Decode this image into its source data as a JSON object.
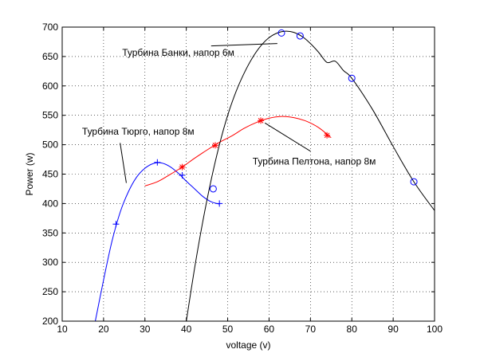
{
  "chart_data": {
    "type": "line",
    "xlabel": "voltage (v)",
    "ylabel": "Power (w)",
    "xlim": [
      10,
      100
    ],
    "ylim": [
      200,
      700
    ],
    "xticks": [
      10,
      20,
      30,
      40,
      50,
      60,
      70,
      80,
      90,
      100
    ],
    "yticks": [
      200,
      250,
      300,
      350,
      400,
      450,
      500,
      550,
      600,
      650,
      700
    ],
    "grid": true,
    "series": [
      {
        "color": "#0000ff",
        "marker": "plus",
        "points": [
          [
            23,
            365
          ],
          [
            33,
            470
          ],
          [
            39,
            448
          ],
          [
            48,
            400
          ]
        ],
        "curve": [
          [
            18,
            200
          ],
          [
            20,
            270
          ],
          [
            22,
            335
          ],
          [
            24,
            385
          ],
          [
            26,
            420
          ],
          [
            28,
            445
          ],
          [
            30,
            460
          ],
          [
            32,
            468
          ],
          [
            34,
            469
          ],
          [
            36,
            463
          ],
          [
            38,
            452
          ],
          [
            40,
            438
          ],
          [
            42,
            425
          ],
          [
            44,
            412
          ],
          [
            46,
            403
          ],
          [
            48,
            399
          ]
        ]
      },
      {
        "color": "#ff0000",
        "marker": "star",
        "points": [
          [
            39,
            462
          ],
          [
            47,
            499
          ],
          [
            58,
            541
          ],
          [
            74,
            516
          ]
        ],
        "curve": [
          [
            30,
            430
          ],
          [
            33,
            437
          ],
          [
            36,
            449
          ],
          [
            39,
            462
          ],
          [
            42,
            477
          ],
          [
            45,
            491
          ],
          [
            48,
            504
          ],
          [
            51,
            515
          ],
          [
            54,
            528
          ],
          [
            57,
            538
          ],
          [
            60,
            545
          ],
          [
            63,
            548
          ],
          [
            66,
            546
          ],
          [
            69,
            540
          ],
          [
            72,
            529
          ],
          [
            75,
            512
          ]
        ]
      },
      {
        "color": "#0000ff",
        "marker": "circle",
        "points": [
          [
            46.5,
            425
          ],
          [
            63,
            690
          ],
          [
            67.5,
            685
          ],
          [
            80,
            613
          ],
          [
            95,
            437
          ]
        ],
        "curve": [
          [
            40,
            200
          ],
          [
            42,
            290
          ],
          [
            44,
            370
          ],
          [
            46,
            440
          ],
          [
            48,
            500
          ],
          [
            50,
            550
          ],
          [
            52,
            590
          ],
          [
            54,
            622
          ],
          [
            56,
            648
          ],
          [
            58,
            668
          ],
          [
            60,
            682
          ],
          [
            62,
            690
          ],
          [
            64,
            693
          ],
          [
            66,
            691
          ],
          [
            68,
            684
          ],
          [
            70,
            672
          ],
          [
            72,
            657
          ],
          [
            74,
            640
          ],
          [
            76,
            642
          ],
          [
            78,
            626
          ],
          [
            80,
            613
          ],
          [
            85,
            560
          ],
          [
            90,
            497
          ],
          [
            95,
            437
          ],
          [
            100,
            388
          ]
        ]
      }
    ],
    "annotations": [
      {
        "text": "Турбина Банки, напор 6м",
        "x": 24.5,
        "y": 651,
        "arrow_from": [
          46,
          668
        ],
        "arrow_to": [
          62,
          672
        ]
      },
      {
        "text": "Турбина Тюрго, напор 8м",
        "x": 14.8,
        "y": 517,
        "arrow_from": [
          24,
          503
        ],
        "arrow_to": [
          25.5,
          435
        ]
      },
      {
        "text": "Турбина Пелтона, напор 8м",
        "x": 56,
        "y": 466,
        "arrow_from": [
          70,
          489
        ],
        "arrow_to": [
          59,
          537
        ]
      }
    ]
  }
}
